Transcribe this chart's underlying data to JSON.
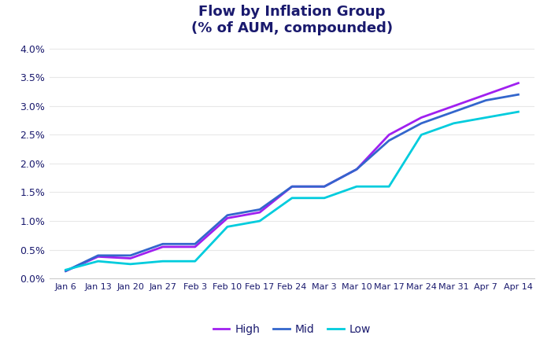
{
  "title": "Flow by Inflation Group\n(% of AUM, compounded)",
  "x_labels": [
    "Jan 6",
    "Jan 13",
    "Jan 20",
    "Jan 27",
    "Feb 3",
    "Feb 10",
    "Feb 17",
    "Feb 24",
    "Mar 3",
    "Mar 10",
    "Mar 17",
    "Mar 24",
    "Mar 31",
    "Apr 7",
    "Apr 14"
  ],
  "high": [
    0.0013,
    0.0038,
    0.0035,
    0.0055,
    0.0055,
    0.0105,
    0.0115,
    0.016,
    0.016,
    0.019,
    0.025,
    0.028,
    0.03,
    0.032,
    0.034
  ],
  "mid": [
    0.0013,
    0.004,
    0.004,
    0.006,
    0.006,
    0.011,
    0.012,
    0.016,
    0.016,
    0.019,
    0.024,
    0.027,
    0.029,
    0.031,
    0.032
  ],
  "low": [
    0.0015,
    0.003,
    0.0025,
    0.003,
    0.003,
    0.009,
    0.01,
    0.014,
    0.014,
    0.016,
    0.016,
    0.025,
    0.027,
    0.028,
    0.029
  ],
  "high_color": "#A020F0",
  "mid_color": "#3366CC",
  "low_color": "#00CCDD",
  "background_color": "#FFFFFF",
  "title_color": "#1a1a6e",
  "tick_color": "#1a1a6e",
  "ylim": [
    0.0,
    0.041
  ],
  "yticks": [
    0.0,
    0.005,
    0.01,
    0.015,
    0.02,
    0.025,
    0.03,
    0.035,
    0.04
  ],
  "ytick_labels": [
    "0.0%",
    "0.5%",
    "1.0%",
    "1.5%",
    "2.0%",
    "2.5%",
    "3.0%",
    "3.5%",
    "4.0%"
  ],
  "legend_labels": [
    "High",
    "Mid",
    "Low"
  ],
  "linewidth": 2.0
}
